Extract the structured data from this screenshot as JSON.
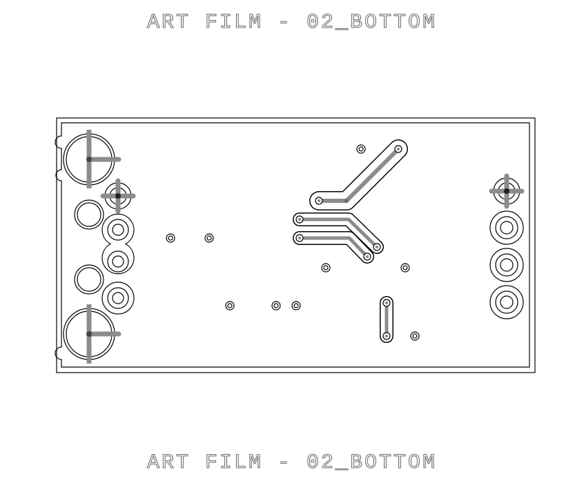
{
  "header": {
    "title": "ART FILM - 02_BOTTOM"
  },
  "footer": {
    "title": "ART FILM - 02_BOTTOM"
  },
  "colors": {
    "outline": "#000000",
    "trace": "#8c8c8c",
    "text": "#707070"
  }
}
